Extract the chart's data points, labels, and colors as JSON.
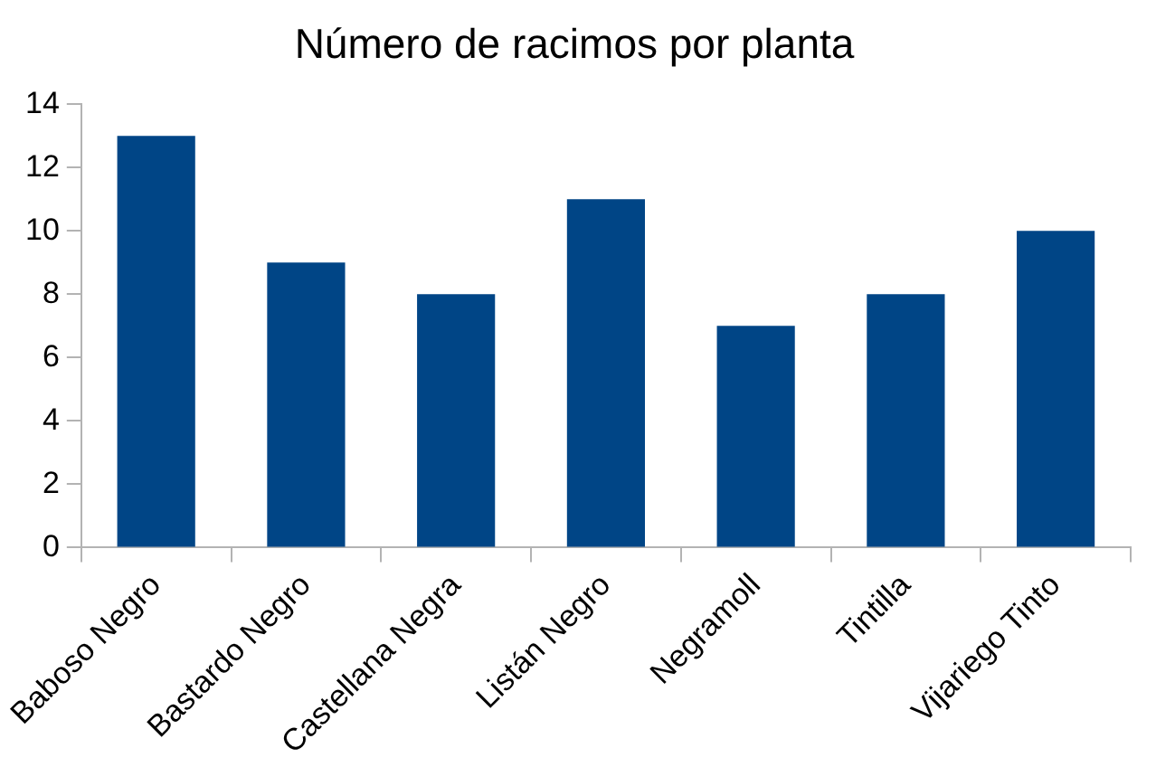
{
  "chart_data": {
    "type": "bar",
    "title": "Número de racimos por planta",
    "categories": [
      "Baboso Negro",
      "Bastardo Negro",
      "Castellana Negra",
      "Listán Negro",
      "Negramoll",
      "Tintilla",
      "Vijariego Tinto"
    ],
    "values": [
      13,
      9,
      8,
      11,
      7,
      8,
      10
    ],
    "color": "#004586",
    "ylim": [
      0,
      14
    ],
    "yticks": [
      0,
      2,
      4,
      6,
      8,
      10,
      12,
      14
    ],
    "grid": false,
    "legend": false
  }
}
